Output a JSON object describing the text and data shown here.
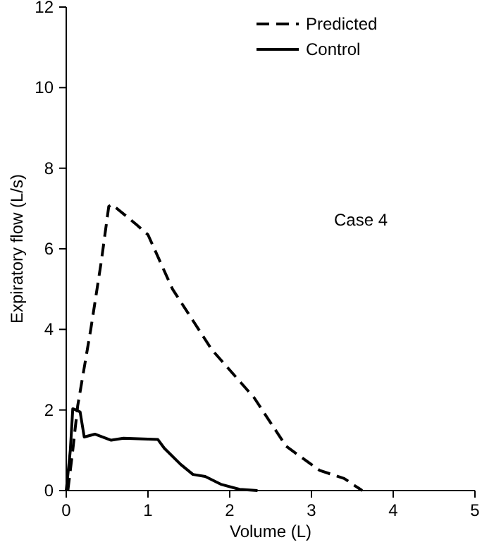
{
  "chart_data": {
    "type": "line",
    "xlabel": "Volume (L)",
    "ylabel": "Expiratory flow (L/s)",
    "xlim": [
      0,
      5
    ],
    "ylim": [
      0,
      12
    ],
    "xticks": [
      0,
      1,
      2,
      3,
      4,
      5
    ],
    "yticks": [
      0,
      2,
      4,
      6,
      8,
      10,
      12
    ],
    "grid": false,
    "legend": "top right",
    "annotations": [
      "Case 4"
    ],
    "series": [
      {
        "name": "Predicted",
        "color": "#000000",
        "line_style": "dashed",
        "x": [
          0.02,
          0.08,
          0.14,
          0.3,
          0.43,
          0.52,
          0.56,
          0.86,
          1.0,
          1.3,
          1.78,
          2.3,
          2.69,
          3.1,
          3.4,
          3.62
        ],
        "values": [
          0,
          1.0,
          2.1,
          4.0,
          5.7,
          7.05,
          7.1,
          6.6,
          6.35,
          5.0,
          3.5,
          2.3,
          1.1,
          0.5,
          0.3,
          0
        ]
      },
      {
        "name": "Control",
        "color": "#000000",
        "line_style": "solid",
        "x": [
          0,
          0.05,
          0.08,
          0.12,
          0.17,
          0.22,
          0.35,
          0.55,
          0.7,
          1.12,
          1.2,
          1.4,
          1.55,
          1.7,
          1.9,
          2.12,
          2.34
        ],
        "values": [
          0,
          1.0,
          2.03,
          2.0,
          1.95,
          1.33,
          1.4,
          1.25,
          1.3,
          1.27,
          1.05,
          0.65,
          0.4,
          0.35,
          0.15,
          0.03,
          0
        ]
      }
    ]
  }
}
